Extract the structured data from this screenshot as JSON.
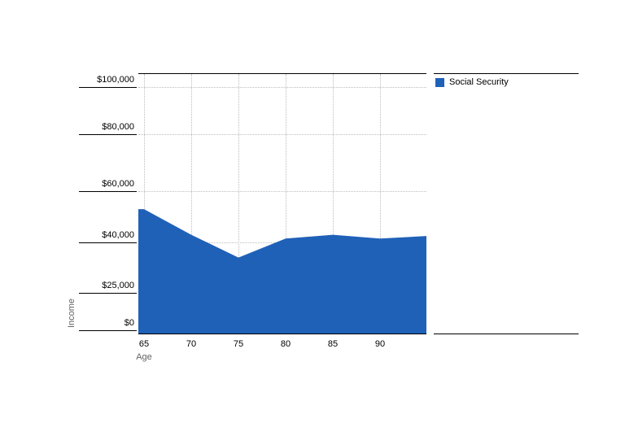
{
  "chart_data": {
    "type": "area",
    "title": "",
    "xlabel": "Age",
    "ylabel": "Income",
    "x": [
      65,
      70,
      75,
      80,
      85,
      90,
      95
    ],
    "series": [
      {
        "name": "Social Security",
        "color": "#2061b8",
        "values": [
          53000,
          43000,
          35500,
          41500,
          43000,
          41500,
          42500
        ]
      }
    ],
    "x_ticks": [
      {
        "value": 65,
        "label": "65"
      },
      {
        "value": 70,
        "label": "70"
      },
      {
        "value": 75,
        "label": "75"
      },
      {
        "value": 80,
        "label": "80"
      },
      {
        "value": 85,
        "label": "85"
      },
      {
        "value": 90,
        "label": "90"
      }
    ],
    "y_ticks": [
      {
        "value": 0,
        "label": "$0"
      },
      {
        "value": 25000,
        "label": "$25,000"
      },
      {
        "value": 40000,
        "label": "$40,000"
      },
      {
        "value": 60000,
        "label": "$60,000"
      },
      {
        "value": 80000,
        "label": "$80,000"
      },
      {
        "value": 100000,
        "label": "$100,000"
      }
    ],
    "xlim": [
      64.4,
      95
    ],
    "ylim": [
      0,
      100000
    ],
    "grid": "dotted",
    "legend_position": "top-right-outside"
  },
  "legend": {
    "items": [
      {
        "label": "Social Security",
        "color": "#2061b8"
      }
    ]
  },
  "axis_labels": {
    "x": "Age",
    "y": "Income"
  }
}
